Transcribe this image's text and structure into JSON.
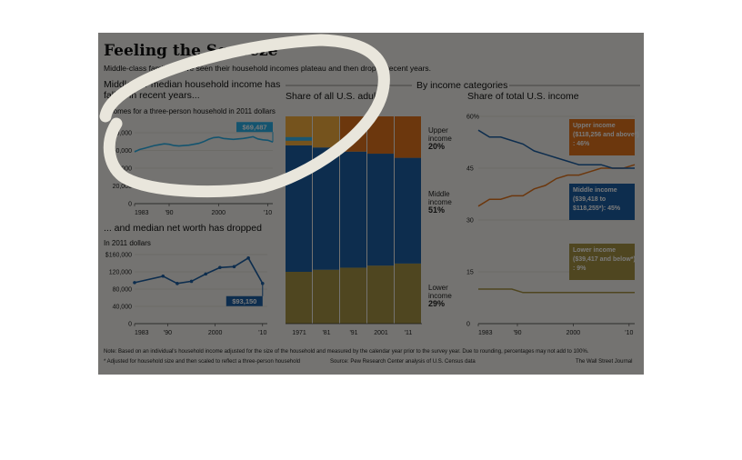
{
  "title": "Feeling the Squeeze",
  "subtitle": "Middle-class families have seen their household incomes plateau and then drop in recent years.",
  "income_panel": {
    "heading": "Middle-tier median household income has fallen in recent years...",
    "subheading": "Incomes for a three-person household in 2011 dollars",
    "callout": "$69,487"
  },
  "worth_panel": {
    "heading": "... and median net worth has dropped",
    "subheading": "In 2011 dollars",
    "callout": "$93,150"
  },
  "categories_header": "By income categories",
  "adults_panel": {
    "heading": "Share of all U.S. adults",
    "labels": [
      {
        "name": "Upper income",
        "value": "20%"
      },
      {
        "name": "Middle income",
        "value": "51%"
      },
      {
        "name": "Lower income",
        "value": "29%"
      }
    ]
  },
  "income_share_panel": {
    "heading": "Share of total U.S. income",
    "labels": [
      {
        "text": "Upper income ($118,256 and above*): 46%"
      },
      {
        "text": "Middle income ($39,418 to $118,255*): 45%"
      },
      {
        "text": "Lower income ($39,417 and below*): 9%"
      }
    ]
  },
  "footer": {
    "note": "Note: Based on an individual's household income adjusted for the size of the household and measured by the calendar year prior to the survey year. Due to rounding, percentages may not add to 100%.",
    "footnote": "* Adjusted for household size and then scaled to reflect a three-person household",
    "source": "Source: Pew Research Center analysis of U.S. Census data",
    "credit": "The Wall Street Journal"
  },
  "colors": {
    "middle": "#1d5fa3",
    "upper": "#e2731c",
    "lower": "#a69244",
    "upper_bar": "#f5ad3d",
    "upper_bar_light": "#36b4ec",
    "income_line": "#2bb0e8",
    "worth_line": "#1d5fa3"
  },
  "chart_data": [
    {
      "type": "line",
      "title": "Middle-tier median household income has fallen in recent years...",
      "ylabel": "Incomes for a three-person household in 2011 dollars",
      "x_ticks": [
        "1983",
        "'90",
        "2000",
        "'10"
      ],
      "y_ticks": [
        "$80,000",
        "60,000",
        "40,000",
        "20,000",
        "0"
      ],
      "ylim": [
        0,
        80000
      ],
      "xlim": [
        1983,
        2011
      ],
      "x": [
        1983,
        1984,
        1985,
        1986,
        1987,
        1988,
        1989,
        1990,
        1991,
        1992,
        1993,
        1994,
        1995,
        1996,
        1997,
        1998,
        1999,
        2000,
        2001,
        2002,
        2003,
        2004,
        2005,
        2006,
        2007,
        2008,
        2009,
        2010,
        2011
      ],
      "values": [
        58500,
        61000,
        62500,
        64000,
        65500,
        66500,
        67500,
        67000,
        65500,
        65000,
        65500,
        66000,
        67000,
        68000,
        70000,
        72500,
        74500,
        75000,
        73500,
        73000,
        72500,
        73000,
        73500,
        74500,
        75500,
        73000,
        72000,
        71500,
        69487
      ],
      "annotation": "$69,487"
    },
    {
      "type": "line",
      "title": "... and median net worth has dropped",
      "ylabel": "In 2011 dollars",
      "x_ticks": [
        "1983",
        "'90",
        "2000",
        "'10"
      ],
      "y_ticks": [
        "$160,000",
        "120,000",
        "80,000",
        "40,000",
        "0"
      ],
      "ylim": [
        0,
        160000
      ],
      "xlim": [
        1983,
        2011
      ],
      "x": [
        1983,
        1989,
        1992,
        1995,
        1998,
        2001,
        2004,
        2007,
        2010
      ],
      "values": [
        95000,
        110000,
        93000,
        98000,
        115000,
        130000,
        132000,
        152000,
        93150
      ],
      "annotation": "$93,150"
    },
    {
      "type": "bar",
      "stacked": true,
      "title": "Share of all U.S. adults",
      "categories": [
        "1971",
        "1981",
        "1991",
        "2001",
        "2011"
      ],
      "x_ticks": [
        "1971",
        "'81",
        "'91",
        "2001",
        "'11"
      ],
      "series": [
        {
          "name": "Lower income",
          "values": [
            25,
            26,
            27,
            28,
            29
          ]
        },
        {
          "name": "Middle income",
          "values": [
            61,
            59,
            56,
            54,
            51
          ]
        },
        {
          "name": "Upper income",
          "values": [
            14,
            15,
            17,
            18,
            20
          ]
        }
      ],
      "ylim": [
        0,
        100
      ]
    },
    {
      "type": "line",
      "title": "Share of total U.S. income",
      "x_ticks": [
        "1983",
        "'90",
        "2000",
        "'10"
      ],
      "y_ticks": [
        "60%",
        "45",
        "30",
        "15",
        "0"
      ],
      "ylim": [
        0,
        60
      ],
      "xlim": [
        1983,
        2011
      ],
      "x": [
        1983,
        1985,
        1987,
        1989,
        1991,
        1993,
        1995,
        1997,
        1999,
        2001,
        2003,
        2005,
        2007,
        2009,
        2011
      ],
      "series": [
        {
          "name": "Upper income ($118,256 and above*): 46%",
          "values": [
            34,
            36,
            36,
            37,
            37,
            39,
            40,
            42,
            43,
            43,
            44,
            45,
            45,
            45,
            46
          ]
        },
        {
          "name": "Middle income ($39,418 to $118,255*): 45%",
          "values": [
            56,
            54,
            54,
            53,
            52,
            50,
            49,
            48,
            47,
            46,
            46,
            46,
            45,
            45,
            45
          ]
        },
        {
          "name": "Lower income ($39,417 and below*): 9%",
          "values": [
            10,
            10,
            10,
            10,
            9,
            9,
            9,
            9,
            9,
            9,
            9,
            9,
            9,
            9,
            9
          ]
        }
      ]
    }
  ]
}
